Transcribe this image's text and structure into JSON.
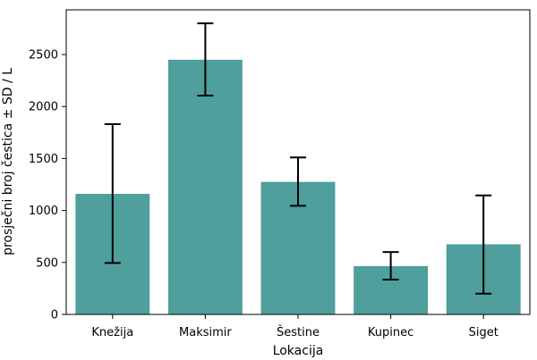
{
  "chart_data": {
    "type": "bar",
    "categories": [
      "Knežija",
      "Maksimir",
      "Šestine",
      "Kupinec",
      "Siget"
    ],
    "values": [
      1160,
      2450,
      1275,
      465,
      675
    ],
    "error_low": [
      495,
      2105,
      1045,
      335,
      200
    ],
    "error_high": [
      1830,
      2800,
      1510,
      600,
      1145
    ],
    "xlabel": "Lokacija",
    "ylabel": "prosječni broj čestica ± SD / L",
    "ylim": [
      0,
      2930
    ],
    "yticks": [
      0,
      500,
      1000,
      1500,
      2000,
      2500
    ],
    "grid": false,
    "legend": "none",
    "colors": {
      "bar": "#4f9f9c",
      "error": "#000000",
      "axis": "#000000"
    }
  }
}
